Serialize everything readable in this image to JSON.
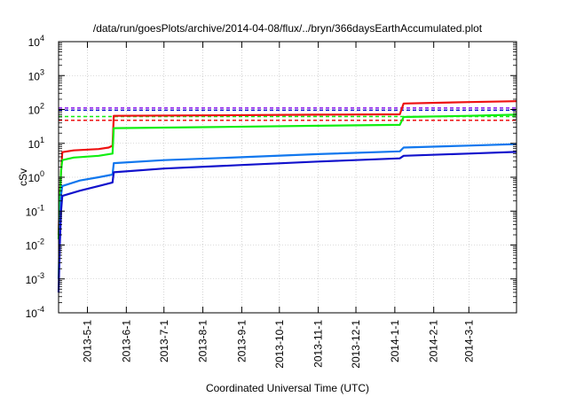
{
  "chart_data": {
    "type": "line",
    "title": "/data/run/goesPlots/archive/2014-04-08/flux/../bryn/366daysEarthAccumulated.plot",
    "xlabel": "Coordinated Universal Time (UTC)",
    "ylabel": "cSv",
    "y_scale": "log",
    "ylim": [
      0.0001,
      10000
    ],
    "xlim": [
      "2013-04-08",
      "2014-04-08"
    ],
    "x_ticks": [
      "2013-5-1",
      "2013-6-1",
      "2013-7-1",
      "2013-8-1",
      "2013-9-1",
      "2013-10-1",
      "2013-11-1",
      "2013-12-1",
      "2014-1-1",
      "2014-2-1",
      "2014-3-1"
    ],
    "y_ticks": [
      {
        "value": 0.0001,
        "base": "10",
        "exp": "-4"
      },
      {
        "value": 0.001,
        "base": "10",
        "exp": "-3"
      },
      {
        "value": 0.01,
        "base": "10",
        "exp": "-2"
      },
      {
        "value": 0.1,
        "base": "10",
        "exp": "-1"
      },
      {
        "value": 1,
        "base": "10",
        "exp": "0"
      },
      {
        "value": 10,
        "base": "10",
        "exp": "1"
      },
      {
        "value": 100,
        "base": "10",
        "exp": "2"
      },
      {
        "value": 1000,
        "base": "10",
        "exp": "3"
      },
      {
        "value": 10000,
        "base": "10",
        "exp": "4"
      }
    ],
    "grid": true,
    "series": [
      {
        "color": "#ee1111",
        "points": [
          [
            "2013-04-08",
            0.02
          ],
          [
            "2013-04-09",
            0.3
          ],
          [
            "2013-04-10",
            1.5
          ],
          [
            "2013-04-11",
            5.5
          ],
          [
            "2013-04-20",
            6.2
          ],
          [
            "2013-05-10",
            6.8
          ],
          [
            "2013-05-18",
            7.5
          ],
          [
            "2013-05-21",
            8.5
          ],
          [
            "2013-05-22",
            65
          ],
          [
            "2013-08-01",
            67
          ],
          [
            "2013-11-01",
            70
          ],
          [
            "2014-01-05",
            72
          ],
          [
            "2014-01-08",
            150
          ],
          [
            "2014-03-01",
            165
          ],
          [
            "2014-04-08",
            175
          ]
        ]
      },
      {
        "color": "#11ee11",
        "points": [
          [
            "2013-04-08",
            0.015
          ],
          [
            "2013-04-09",
            0.2
          ],
          [
            "2013-04-10",
            1.5
          ],
          [
            "2013-04-11",
            3.2
          ],
          [
            "2013-04-20",
            3.8
          ],
          [
            "2013-05-10",
            4.3
          ],
          [
            "2013-05-21",
            5
          ],
          [
            "2013-05-22",
            28
          ],
          [
            "2013-08-01",
            30
          ],
          [
            "2013-11-01",
            33
          ],
          [
            "2014-01-05",
            35
          ],
          [
            "2014-01-08",
            60
          ],
          [
            "2014-03-01",
            65
          ],
          [
            "2014-04-08",
            70
          ]
        ]
      },
      {
        "color": "#1177ee",
        "points": [
          [
            "2013-04-08",
            0.001
          ],
          [
            "2013-04-09",
            0.03
          ],
          [
            "2013-04-10",
            0.3
          ],
          [
            "2013-04-11",
            0.55
          ],
          [
            "2013-04-25",
            0.8
          ],
          [
            "2013-05-10",
            1
          ],
          [
            "2013-05-21",
            1.2
          ],
          [
            "2013-05-22",
            2.6
          ],
          [
            "2013-07-01",
            3.2
          ],
          [
            "2013-09-01",
            3.9
          ],
          [
            "2013-11-01",
            4.8
          ],
          [
            "2014-01-05",
            5.8
          ],
          [
            "2014-01-08",
            7.5
          ],
          [
            "2014-03-01",
            8.6
          ],
          [
            "2014-04-08",
            9.5
          ]
        ]
      },
      {
        "color": "#1111cc",
        "points": [
          [
            "2013-04-08",
            0.0004
          ],
          [
            "2013-04-09",
            0.01
          ],
          [
            "2013-04-10",
            0.1
          ],
          [
            "2013-04-11",
            0.28
          ],
          [
            "2013-04-25",
            0.4
          ],
          [
            "2013-05-10",
            0.55
          ],
          [
            "2013-05-21",
            0.7
          ],
          [
            "2013-05-22",
            1.4
          ],
          [
            "2013-07-01",
            1.8
          ],
          [
            "2013-09-01",
            2.3
          ],
          [
            "2013-11-01",
            2.9
          ],
          [
            "2014-01-05",
            3.6
          ],
          [
            "2014-01-08",
            4.3
          ],
          [
            "2014-03-01",
            5
          ],
          [
            "2014-04-08",
            5.6
          ]
        ]
      }
    ],
    "reference_lines": [
      {
        "color": "#8811ee",
        "value": 110,
        "style": "dashed"
      },
      {
        "color": "#1111cc",
        "value": 95,
        "style": "dashed"
      },
      {
        "color": "#11ee11",
        "value": 62,
        "style": "dashed"
      },
      {
        "color": "#ee1111",
        "value": 48,
        "style": "dashed"
      }
    ]
  }
}
